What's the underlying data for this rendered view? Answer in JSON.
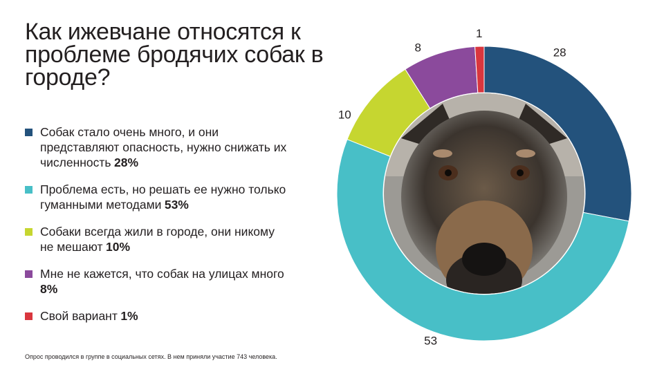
{
  "title": "Как ижевчане относятся к проблеме бродячих собак в городе?",
  "footnote": "Опрос проводился в группе в социальных сетях. В нем приняли участие 743 человека.",
  "photo_icon": "stray-dog-photo",
  "chart_data": {
    "type": "pie",
    "title": "Как ижевчане относятся к проблеме бродячих собак в городе?",
    "series": [
      {
        "values": [
          28,
          53,
          10,
          8,
          1
        ],
        "labels": [
          "28",
          "53",
          "10",
          "8",
          "1"
        ]
      }
    ],
    "categories": [
      "Собак стало очень много, и они представляют опасность, нужно снижать их численность",
      "Проблема есть, но решать ее нужно только гуманными методами",
      "Собаки всегда жили в городе, они никому не мешают",
      "Мне не кажется, что собак на улицах много",
      "Свой вариант"
    ],
    "percents": [
      "28%",
      "53%",
      "10%",
      "8%",
      "1%"
    ],
    "colors": [
      "#23527c",
      "#48bfc7",
      "#c6d630",
      "#8b4a9c",
      "#d9363e"
    ],
    "legend_position": "left"
  }
}
